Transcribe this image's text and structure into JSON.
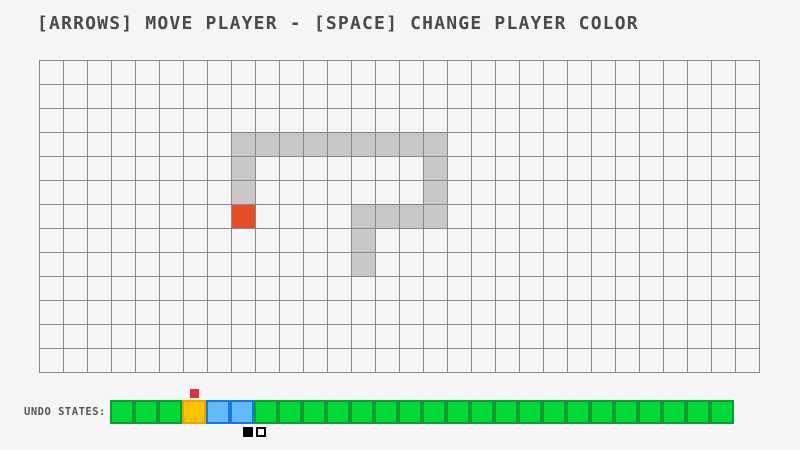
{
  "title": "[ARROWS] MOVE PLAYER - [SPACE] CHANGE PLAYER COLOR",
  "board": {
    "cols": 30,
    "rows": 13,
    "cell_size": 24,
    "grid_line_color": "#888888",
    "trail_color": "#c8c8c8",
    "player_color": "#e64c26",
    "trail_cells": [
      [
        8,
        3
      ],
      [
        9,
        3
      ],
      [
        10,
        3
      ],
      [
        11,
        3
      ],
      [
        12,
        3
      ],
      [
        13,
        3
      ],
      [
        14,
        3
      ],
      [
        15,
        3
      ],
      [
        16,
        3
      ],
      [
        8,
        4
      ],
      [
        16,
        4
      ],
      [
        8,
        5
      ],
      [
        16,
        5
      ],
      [
        13,
        6
      ],
      [
        14,
        6
      ],
      [
        15,
        6
      ],
      [
        16,
        6
      ],
      [
        13,
        7
      ],
      [
        13,
        8
      ]
    ],
    "player_cell": [
      8,
      6
    ]
  },
  "undo_bar": {
    "label": "UNDO STATES:",
    "cell_size": 24,
    "cells": [
      "green",
      "green",
      "green",
      "orange",
      "blue",
      "blue",
      "green",
      "green",
      "green",
      "green",
      "green",
      "green",
      "green",
      "green",
      "green",
      "green",
      "green",
      "green",
      "green",
      "green",
      "green",
      "green",
      "green",
      "green",
      "green",
      "green"
    ],
    "palette": {
      "green": {
        "fill": "#00d936",
        "border": "#0a9e2e"
      },
      "orange": {
        "fill": "#ffc400",
        "border": "#eda200"
      },
      "blue": {
        "fill": "#64b9f8",
        "border": "#1478dc"
      }
    },
    "marker_index": 3,
    "marker_color": "#e0303c",
    "cursor": {
      "boundary_index": 6,
      "symbols": [
        "filled-square",
        "outline-square"
      ]
    }
  },
  "colors": {
    "page_bg": "#f5f5f6",
    "title": "#4a4a4a",
    "label": "#555555"
  }
}
